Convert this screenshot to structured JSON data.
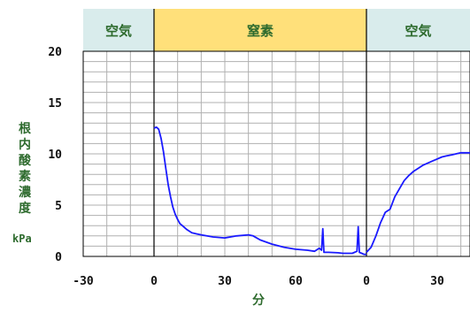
{
  "chart_data": {
    "type": "line",
    "title": "",
    "xlabel": "分",
    "ylabel_chars": [
      "根",
      "内",
      "酸",
      "素",
      "濃",
      "度"
    ],
    "yunit": "kPa",
    "ylim": [
      0,
      20
    ],
    "y_ticks": [
      0,
      5,
      10,
      15,
      20
    ],
    "x_tick_labels": [
      "-30",
      "0",
      "30",
      "60",
      "0",
      "30"
    ],
    "grid": true,
    "gas_phases": [
      {
        "label": "空気",
        "color": "#d9ecec"
      },
      {
        "label": "窒素",
        "color": "#ffe07a"
      },
      {
        "label": "空気",
        "color": "#d9ecec"
      }
    ],
    "colors": {
      "line": "#1a1aff",
      "grid": "#b0b0b0",
      "boundary": "#000000"
    },
    "series": [
      {
        "x_minutes_relative": "segment 1: minutes since N2 start; segment 2: minutes since air return",
        "segments": [
          {
            "x": [
              0,
              1,
              2,
              3,
              4,
              5,
              6,
              7,
              8,
              9,
              10,
              11,
              12,
              14,
              16,
              18,
              20,
              25,
              30,
              35,
              40,
              42,
              45,
              50,
              55,
              60,
              65,
              68,
              70,
              71,
              71.5,
              72,
              74,
              78,
              80,
              84,
              86,
              86.5,
              87,
              88,
              89,
              90
            ],
            "y": [
              12.5,
              12.6,
              12.4,
              11.5,
              10.2,
              8.6,
              7.0,
              5.8,
              4.8,
              4.1,
              3.6,
              3.2,
              3.0,
              2.6,
              2.3,
              2.2,
              2.1,
              1.9,
              1.8,
              2.0,
              2.1,
              2.0,
              1.6,
              1.2,
              0.9,
              0.7,
              0.6,
              0.5,
              0.8,
              0.6,
              2.7,
              0.4,
              0.4,
              0.35,
              0.3,
              0.3,
              0.5,
              2.9,
              0.4,
              0.3,
              0.2,
              0.2
            ]
          },
          {
            "x": [
              0,
              2,
              4,
              6,
              8,
              10,
              12,
              14,
              16,
              18,
              20,
              22,
              24,
              26,
              28,
              30,
              32,
              34,
              36,
              38,
              40,
              42,
              44
            ],
            "y": [
              0.4,
              0.9,
              2.0,
              3.3,
              4.3,
              4.6,
              5.8,
              6.6,
              7.4,
              7.9,
              8.3,
              8.6,
              8.9,
              9.1,
              9.3,
              9.5,
              9.7,
              9.8,
              9.9,
              10.0,
              10.1,
              10.1,
              10.1
            ]
          }
        ]
      }
    ]
  }
}
